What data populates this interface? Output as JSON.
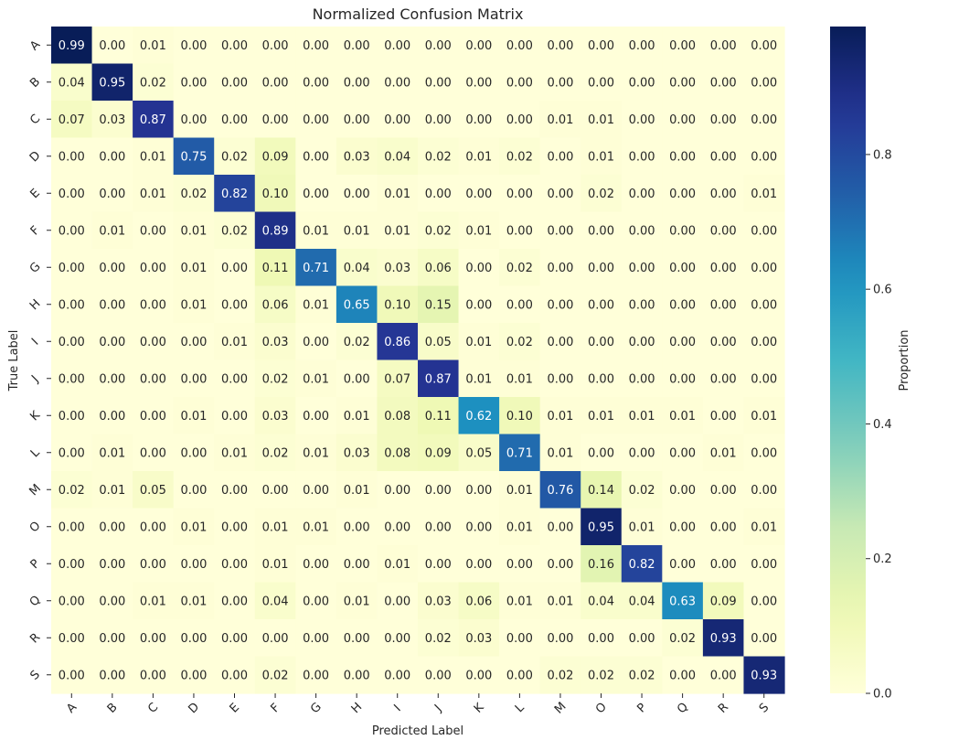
{
  "chart_data": {
    "type": "heatmap",
    "title": "Normalized Confusion Matrix",
    "xlabel": "Predicted Label",
    "ylabel": "True Label",
    "colorbar_label": "Proportion",
    "colormap": "YlGnBu",
    "vmin": 0.0,
    "vmax": 0.99,
    "colorbar_ticks": [
      "0.0",
      "0.2",
      "0.4",
      "0.6",
      "0.8"
    ],
    "x_categories": [
      "A",
      "B",
      "C",
      "D",
      "E",
      "F",
      "G",
      "H",
      "I",
      "J",
      "K",
      "L",
      "M",
      "O",
      "P",
      "Q",
      "R",
      "S"
    ],
    "y_categories": [
      "A",
      "B",
      "C",
      "D",
      "E",
      "F",
      "G",
      "H",
      "I",
      "J",
      "K",
      "L",
      "M",
      "O",
      "P",
      "Q",
      "R",
      "S"
    ],
    "values": [
      [
        0.99,
        0.0,
        0.01,
        0.0,
        0.0,
        0.0,
        0.0,
        0.0,
        0.0,
        0.0,
        0.0,
        0.0,
        0.0,
        0.0,
        0.0,
        0.0,
        0.0,
        0.0
      ],
      [
        0.04,
        0.95,
        0.02,
        0.0,
        0.0,
        0.0,
        0.0,
        0.0,
        0.0,
        0.0,
        0.0,
        0.0,
        0.0,
        0.0,
        0.0,
        0.0,
        0.0,
        0.0
      ],
      [
        0.07,
        0.03,
        0.87,
        0.0,
        0.0,
        0.0,
        0.0,
        0.0,
        0.0,
        0.0,
        0.0,
        0.0,
        0.01,
        0.01,
        0.0,
        0.0,
        0.0,
        0.0
      ],
      [
        0.0,
        0.0,
        0.01,
        0.75,
        0.02,
        0.09,
        0.0,
        0.03,
        0.04,
        0.02,
        0.01,
        0.02,
        0.0,
        0.01,
        0.0,
        0.0,
        0.0,
        0.0
      ],
      [
        0.0,
        0.0,
        0.01,
        0.02,
        0.82,
        0.1,
        0.0,
        0.0,
        0.01,
        0.0,
        0.0,
        0.0,
        0.0,
        0.02,
        0.0,
        0.0,
        0.0,
        0.01
      ],
      [
        0.0,
        0.01,
        0.0,
        0.01,
        0.02,
        0.89,
        0.01,
        0.01,
        0.01,
        0.02,
        0.01,
        0.0,
        0.0,
        0.0,
        0.0,
        0.0,
        0.0,
        0.0
      ],
      [
        0.0,
        0.0,
        0.0,
        0.01,
        0.0,
        0.11,
        0.71,
        0.04,
        0.03,
        0.06,
        0.0,
        0.02,
        0.0,
        0.0,
        0.0,
        0.0,
        0.0,
        0.0
      ],
      [
        0.0,
        0.0,
        0.0,
        0.01,
        0.0,
        0.06,
        0.01,
        0.65,
        0.1,
        0.15,
        0.0,
        0.0,
        0.0,
        0.0,
        0.0,
        0.0,
        0.0,
        0.0
      ],
      [
        0.0,
        0.0,
        0.0,
        0.0,
        0.01,
        0.03,
        0.0,
        0.02,
        0.86,
        0.05,
        0.01,
        0.02,
        0.0,
        0.0,
        0.0,
        0.0,
        0.0,
        0.0
      ],
      [
        0.0,
        0.0,
        0.0,
        0.0,
        0.0,
        0.02,
        0.01,
        0.0,
        0.07,
        0.87,
        0.01,
        0.01,
        0.0,
        0.0,
        0.0,
        0.0,
        0.0,
        0.0
      ],
      [
        0.0,
        0.0,
        0.0,
        0.01,
        0.0,
        0.03,
        0.0,
        0.01,
        0.08,
        0.11,
        0.62,
        0.1,
        0.01,
        0.01,
        0.01,
        0.01,
        0.0,
        0.01
      ],
      [
        0.0,
        0.01,
        0.0,
        0.0,
        0.01,
        0.02,
        0.01,
        0.03,
        0.08,
        0.09,
        0.05,
        0.71,
        0.01,
        0.0,
        0.0,
        0.0,
        0.01,
        0.0
      ],
      [
        0.02,
        0.01,
        0.05,
        0.0,
        0.0,
        0.0,
        0.0,
        0.01,
        0.0,
        0.0,
        0.0,
        0.01,
        0.76,
        0.14,
        0.02,
        0.0,
        0.0,
        0.0
      ],
      [
        0.0,
        0.0,
        0.0,
        0.01,
        0.0,
        0.01,
        0.01,
        0.0,
        0.0,
        0.0,
        0.0,
        0.01,
        0.0,
        0.95,
        0.01,
        0.0,
        0.0,
        0.01
      ],
      [
        0.0,
        0.0,
        0.0,
        0.0,
        0.0,
        0.01,
        0.0,
        0.0,
        0.01,
        0.0,
        0.0,
        0.0,
        0.0,
        0.16,
        0.82,
        0.0,
        0.0,
        0.0
      ],
      [
        0.0,
        0.0,
        0.01,
        0.01,
        0.0,
        0.04,
        0.0,
        0.01,
        0.0,
        0.03,
        0.06,
        0.01,
        0.01,
        0.04,
        0.04,
        0.63,
        0.09,
        0.0
      ],
      [
        0.0,
        0.0,
        0.0,
        0.0,
        0.0,
        0.0,
        0.0,
        0.0,
        0.0,
        0.02,
        0.03,
        0.0,
        0.0,
        0.0,
        0.0,
        0.02,
        0.93,
        0.0
      ],
      [
        0.0,
        0.0,
        0.0,
        0.0,
        0.0,
        0.02,
        0.0,
        0.0,
        0.0,
        0.0,
        0.0,
        0.0,
        0.02,
        0.02,
        0.02,
        0.0,
        0.0,
        0.93
      ]
    ]
  }
}
